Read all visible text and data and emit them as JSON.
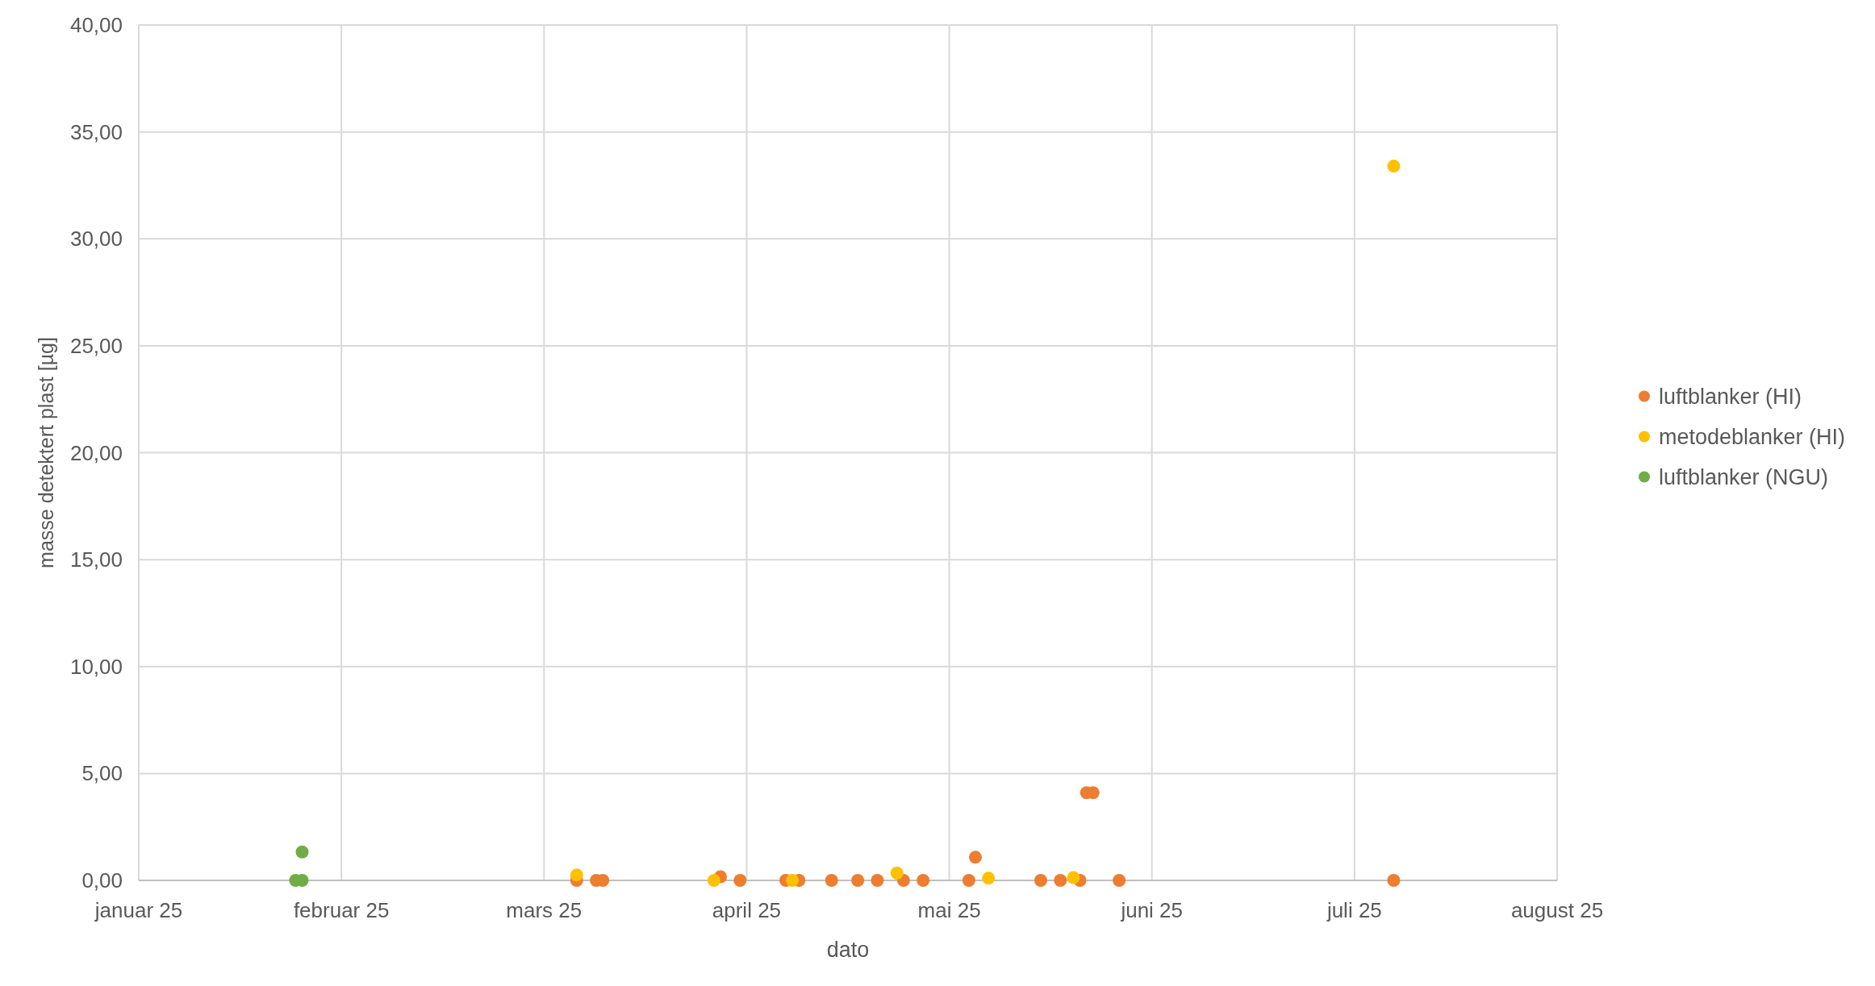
{
  "chart_data": {
    "type": "scatter",
    "xlabel": "dato",
    "ylabel": "masse detektert plast [µg]",
    "xlim": [
      "2025-01-01",
      "2025-08-06"
    ],
    "xticks": [
      {
        "value": "2025-01-01",
        "label": "januar 25"
      },
      {
        "value": "2025-02-01",
        "label": "februar 25"
      },
      {
        "value": "2025-03-04",
        "label": "mars 25"
      },
      {
        "value": "2025-04-04",
        "label": "april 25"
      },
      {
        "value": "2025-05-05",
        "label": "mai 25"
      },
      {
        "value": "2025-06-05",
        "label": "juni 25"
      },
      {
        "value": "2025-07-06",
        "label": "juli 25"
      },
      {
        "value": "2025-08-06",
        "label": "august 25"
      }
    ],
    "ylim": [
      0,
      40
    ],
    "yticks": [
      {
        "value": 0,
        "label": "0,00"
      },
      {
        "value": 5,
        "label": "5,00"
      },
      {
        "value": 10,
        "label": "10,00"
      },
      {
        "value": 15,
        "label": "15,00"
      },
      {
        "value": 20,
        "label": "20,00"
      },
      {
        "value": 25,
        "label": "25,00"
      },
      {
        "value": 30,
        "label": "30,00"
      },
      {
        "value": 35,
        "label": "35,00"
      },
      {
        "value": 40,
        "label": "40,00"
      }
    ],
    "grid": true,
    "legend": "right",
    "marker": "circle",
    "series": [
      {
        "name": "luftblanker (HI)",
        "color": "#ed7d31",
        "x": [
          "2025-03-09",
          "2025-03-12",
          "2025-03-13",
          "2025-03-31",
          "2025-04-03",
          "2025-04-10",
          "2025-04-12",
          "2025-04-17",
          "2025-04-21",
          "2025-04-24",
          "2025-04-28",
          "2025-05-01",
          "2025-05-08",
          "2025-05-09",
          "2025-05-19",
          "2025-05-22",
          "2025-05-25",
          "2025-05-26",
          "2025-05-27",
          "2025-05-31",
          "2025-07-12"
        ],
        "values": [
          0,
          0,
          0,
          0.17,
          0,
          0,
          0,
          0,
          0,
          0,
          0,
          0,
          0,
          1.08,
          0,
          0,
          0,
          4.1,
          4.1,
          0,
          0
        ]
      },
      {
        "name": "metodeblanker (HI)",
        "color": "#ffc000",
        "x": [
          "2025-03-09",
          "2025-03-30",
          "2025-04-11",
          "2025-04-27",
          "2025-05-11",
          "2025-05-24",
          "2025-07-12"
        ],
        "values": [
          0.25,
          0,
          0,
          0.34,
          0.1,
          0.13,
          33.4
        ]
      },
      {
        "name": "luftblanker (NGU)",
        "color": "#70ad47",
        "x": [
          "2025-01-25",
          "2025-01-26",
          "2025-01-26"
        ],
        "values": [
          0,
          0,
          1.33
        ]
      }
    ]
  }
}
